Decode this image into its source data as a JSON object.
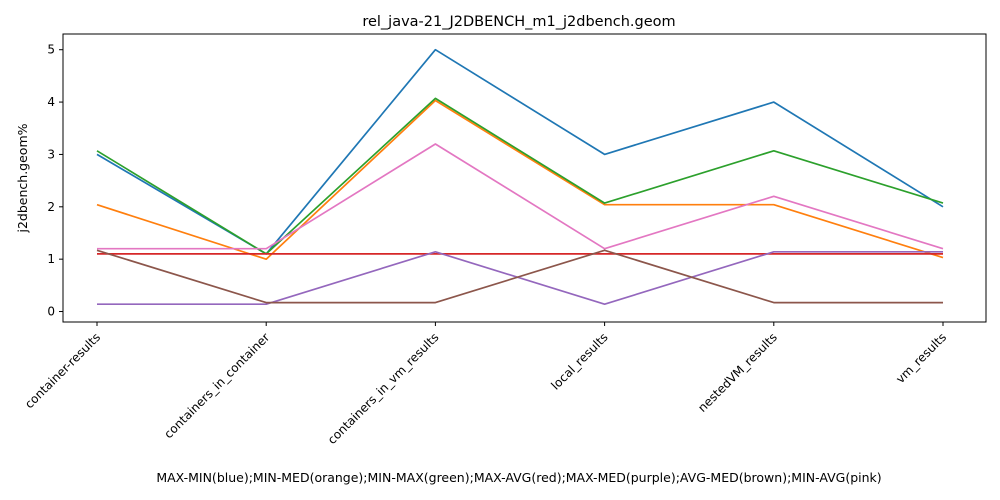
{
  "chart_data": {
    "type": "line",
    "title": "rel_java-21_J2DBENCH_m1_j2dbench.geom",
    "xlabel": "MAX-MIN(blue);MIN-MED(orange);MIN-MAX(green);MAX-AVG(red);MAX-MED(purple);AVG-MED(brown);MIN-AVG(pink)",
    "ylabel": "j2dbench.geom%",
    "categories": [
      "container-results",
      "containers_in_container",
      "containers_in_vm_results",
      "local_results",
      "nestedVM_results",
      "vm_results"
    ],
    "ylim": [
      -0.2,
      5.3
    ],
    "yticks": [
      0,
      1,
      2,
      3,
      4,
      5
    ],
    "grid": false,
    "series": [
      {
        "color": "#1f77b4",
        "values": [
          3.0,
          1.1,
          5.0,
          3.0,
          4.0,
          2.0
        ]
      },
      {
        "color": "#ff7f0e",
        "values": [
          2.04,
          1.0,
          4.03,
          2.04,
          2.04,
          1.03
        ]
      },
      {
        "color": "#2ca02c",
        "values": [
          3.07,
          1.1,
          4.07,
          2.07,
          3.07,
          2.07
        ]
      },
      {
        "color": "#d62728",
        "values": [
          1.1,
          1.1,
          1.1,
          1.1,
          1.1,
          1.1
        ]
      },
      {
        "color": "#9467bd",
        "values": [
          0.14,
          0.14,
          1.14,
          0.14,
          1.14,
          1.14
        ]
      },
      {
        "color": "#8c564b",
        "values": [
          1.17,
          0.17,
          0.17,
          1.17,
          0.17,
          0.17
        ]
      },
      {
        "color": "#e377c2",
        "values": [
          1.2,
          1.2,
          3.2,
          1.2,
          2.2,
          1.2
        ]
      }
    ]
  }
}
